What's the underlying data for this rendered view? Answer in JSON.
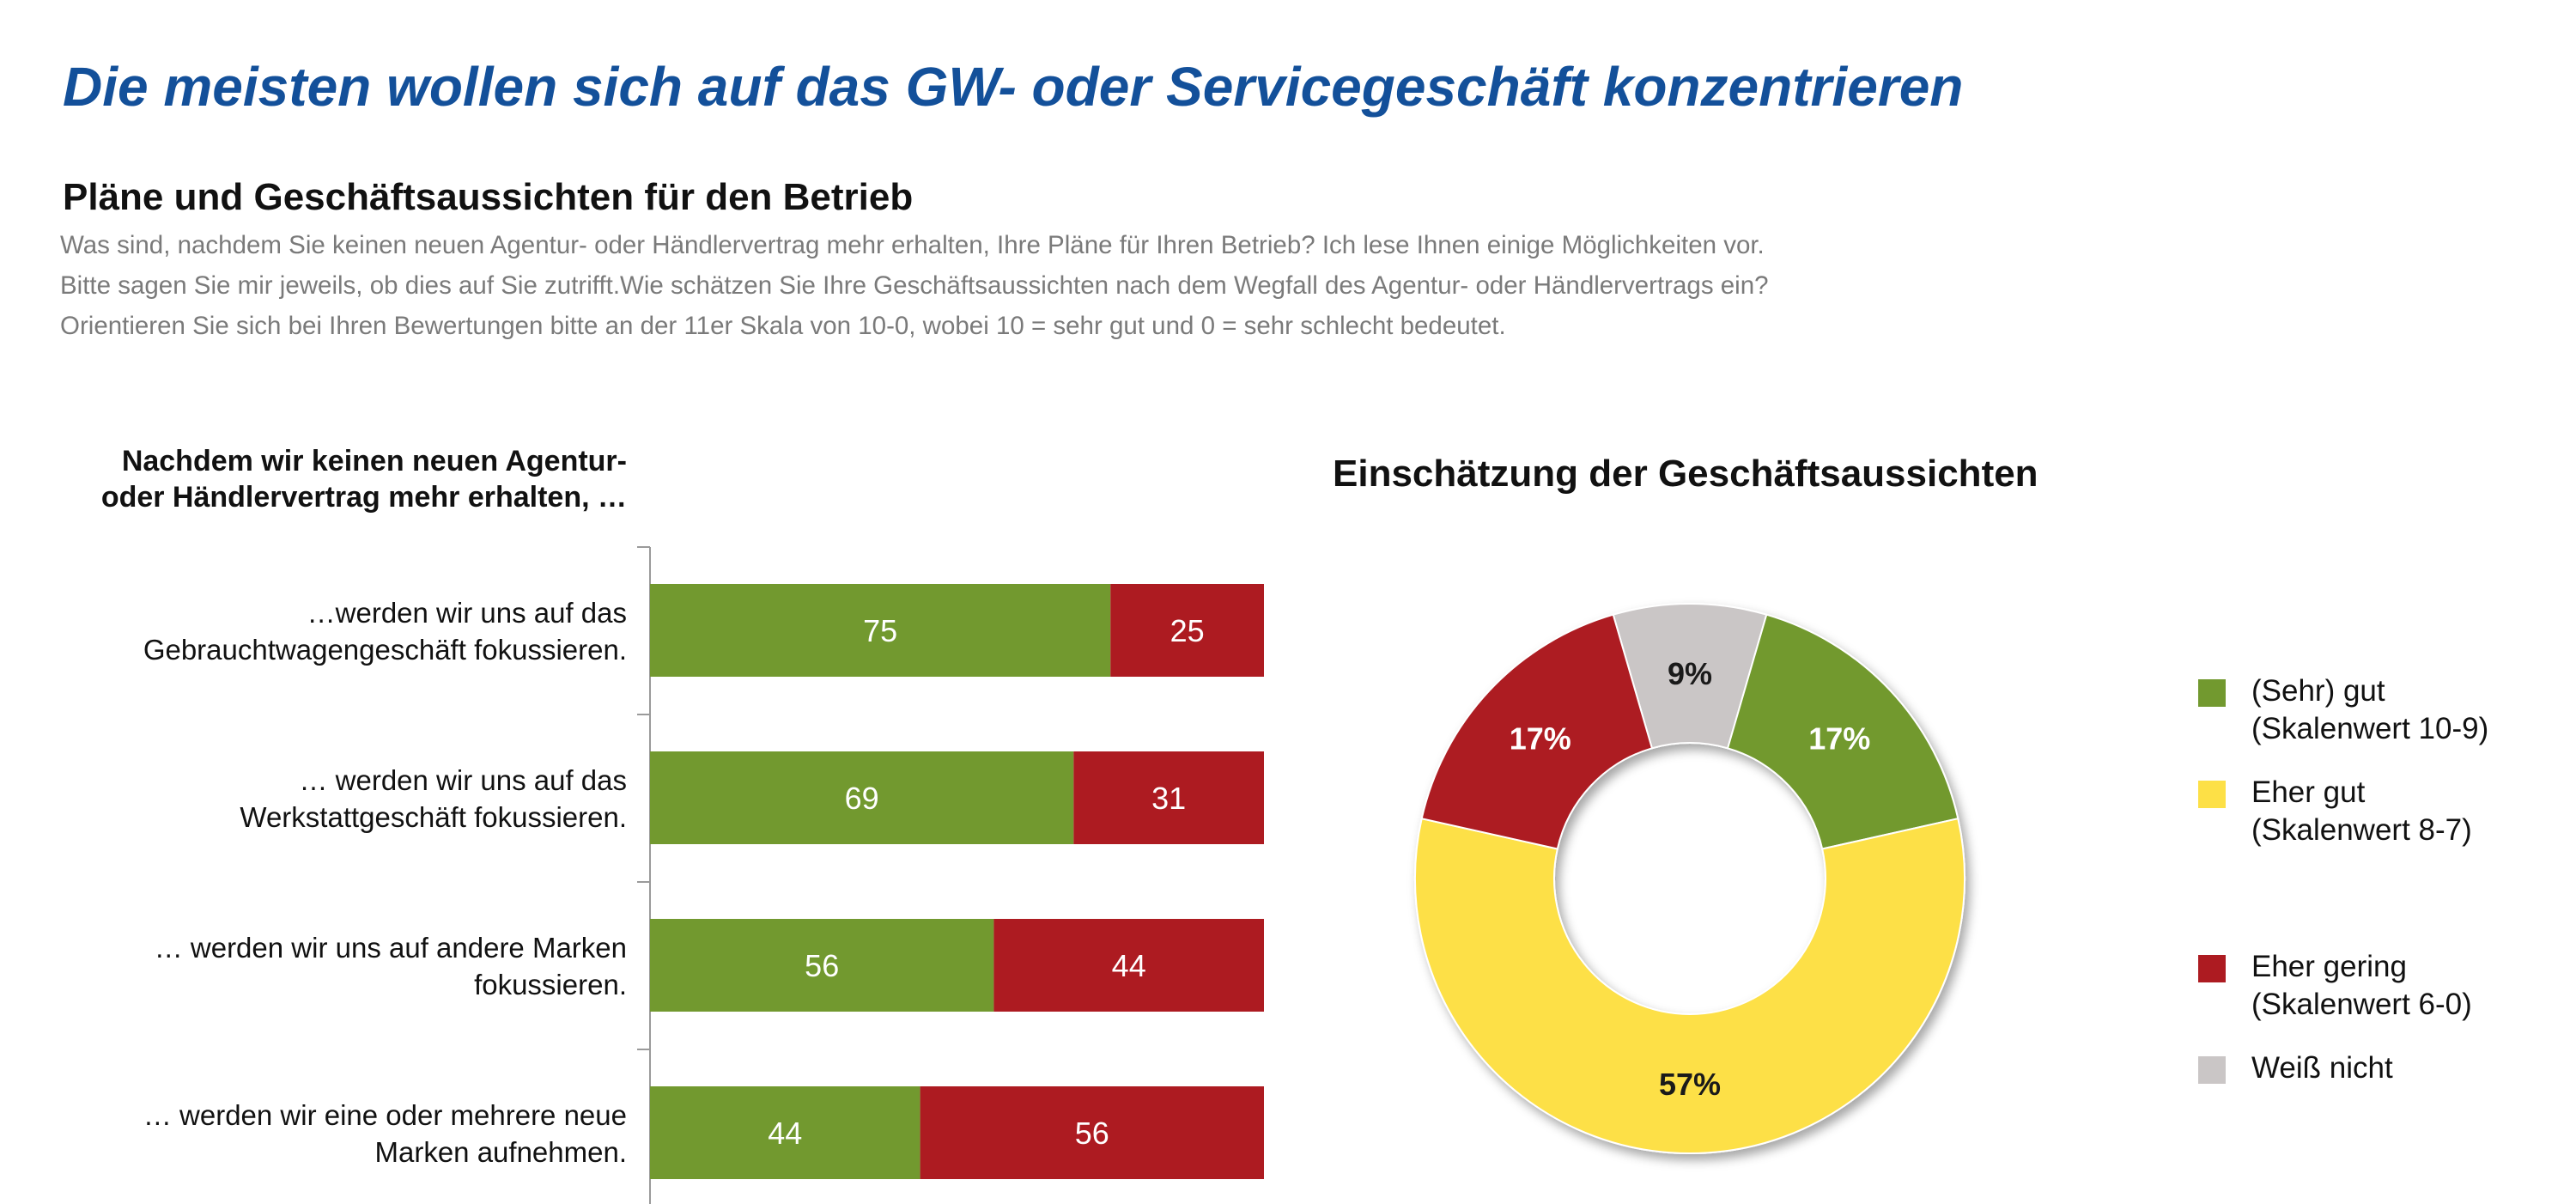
{
  "headline": "Die meisten wollen sich auf das GW- oder Servicegeschäft konzentrieren",
  "subheadline": "Pläne und Geschäftsaussichten für den Betrieb",
  "question_lines": [
    "Was sind, nachdem Sie keinen neuen Agentur- oder Händlervertrag mehr erhalten, Ihre Pläne für Ihren Betrieb? Ich lese Ihnen einige Möglichkeiten vor.",
    "Bitte sagen Sie mir jeweils, ob dies auf Sie zutrifft.Wie schätzen Sie Ihre Geschäftsaussichten nach dem Wegfall des Agentur- oder Händlervertrags ein?",
    "Orientieren Sie sich bei Ihren Bewertungen bitte an der 11er Skala von 10-0, wobei 10 = sehr gut und  0 = sehr schlecht bedeutet."
  ],
  "chart_data": [
    {
      "type": "bar",
      "orientation": "horizontal",
      "stacked": true,
      "title_lines": [
        "Nachdem wir keinen neuen Agentur-",
        "oder Händlervertrag mehr erhalten, …"
      ],
      "categories": [
        [
          "…werden wir uns auf das",
          "Gebrauchtwagengeschäft fokussieren."
        ],
        [
          "… werden wir uns auf das",
          "Werkstattgeschäft fokussieren."
        ],
        [
          "… werden wir uns auf andere Marken",
          "fokussieren."
        ],
        [
          "… werden wir eine oder mehrere neue",
          "Marken aufnehmen."
        ]
      ],
      "series": [
        {
          "values": [
            75,
            69,
            56,
            44
          ],
          "color": "#72992f"
        },
        {
          "values": [
            25,
            31,
            44,
            56
          ],
          "color": "#ad1b21"
        }
      ],
      "xlim": [
        0,
        100
      ],
      "data_labels": true,
      "grid": false,
      "legend": "none"
    },
    {
      "type": "pie",
      "donut": true,
      "title": "Einschätzung der Geschäftsaussichten",
      "slices": [
        {
          "label": "(Sehr) gut",
          "sublabel": "(Skalenwert 10-9)",
          "value": 17,
          "display": "17%",
          "color": "#72992f"
        },
        {
          "label": "Eher gut",
          "sublabel": "(Skalenwert 8-7)",
          "value": 57,
          "display": "57%",
          "color": "#fde046"
        },
        {
          "label": "Eher gering",
          "sublabel": "(Skalenwert 6-0)",
          "value": 17,
          "display": "17%",
          "color": "#ad1b21"
        },
        {
          "label": "Weiß nicht",
          "sublabel": "",
          "value": 9,
          "display": "9%",
          "color": "#cac6c6"
        }
      ],
      "legend": "right"
    }
  ]
}
